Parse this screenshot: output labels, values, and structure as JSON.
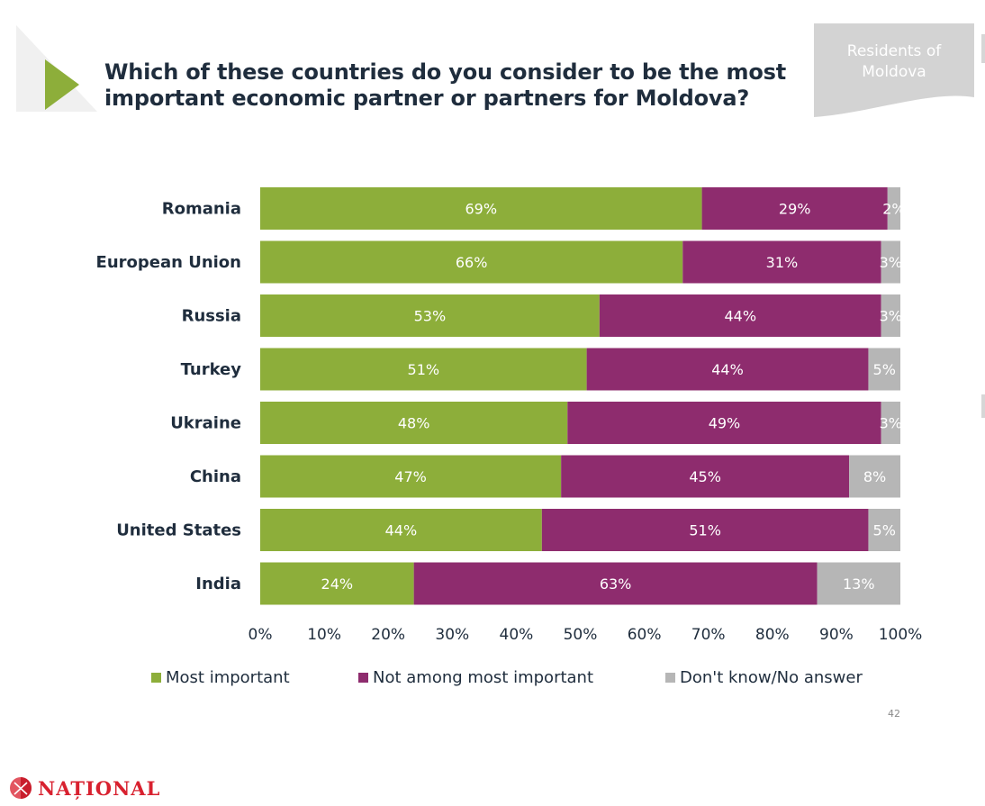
{
  "header": {
    "title": "Which of these countries do you consider to be the most important economic partner or partners for Moldova?",
    "audience_tab": "Residents of Moldova"
  },
  "chart_data": {
    "type": "bar",
    "orientation": "horizontal",
    "stacked": true,
    "categories": [
      "Romania",
      "European Union",
      "Russia",
      "Turkey",
      "Ukraine",
      "China",
      "United States",
      "India"
    ],
    "series": [
      {
        "name": "Most important",
        "color": "#8dae3a",
        "values": [
          69,
          66,
          53,
          51,
          48,
          47,
          44,
          24
        ]
      },
      {
        "name": "Not among most important",
        "color": "#8e2c6e",
        "values": [
          29,
          31,
          44,
          44,
          49,
          45,
          51,
          63
        ]
      },
      {
        "name": "Don't know/No answer",
        "color": "#b6b6b6",
        "values": [
          2,
          3,
          3,
          5,
          3,
          8,
          5,
          13
        ]
      }
    ],
    "value_suffix": "%",
    "xlim": [
      0,
      100
    ],
    "x_ticks": [
      "0%",
      "10%",
      "20%",
      "30%",
      "40%",
      "50%",
      "60%",
      "70%",
      "80%",
      "90%",
      "100%"
    ],
    "grid": false,
    "legend_position": "bottom"
  },
  "page_number": "42",
  "logo": {
    "text": "NAȚIONAL",
    "icon": "flag-globe-icon",
    "color": "#d8212f"
  }
}
